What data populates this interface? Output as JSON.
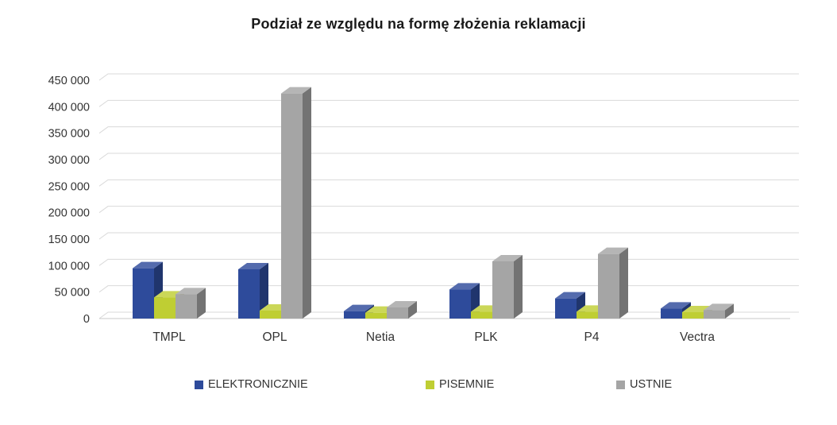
{
  "title": "Podział ze względu na formę złożenia reklamacji",
  "chart_data": {
    "type": "bar",
    "variant": "3d-clustered-column",
    "title": "Podział ze względu na formę złożenia reklamacji",
    "categories": [
      "TMPL",
      "OPL",
      "Netia",
      "PLK",
      "P4",
      "Vectra"
    ],
    "series": [
      {
        "name": "ELEKTRONICZNIE",
        "color": "#2E4B9B",
        "values": [
          95000,
          93000,
          14000,
          55000,
          38000,
          19000
        ]
      },
      {
        "name": "PISEMNIE",
        "color": "#BFCE33",
        "values": [
          40000,
          15000,
          11000,
          13000,
          13000,
          12000
        ]
      },
      {
        "name": "USTNIE",
        "color": "#A5A5A5",
        "values": [
          46000,
          425000,
          21000,
          108000,
          122000,
          16000
        ]
      }
    ],
    "ylim": [
      0,
      450000
    ],
    "ytick_step": 50000,
    "ytick_labels": [
      "0",
      "50 000",
      "100 000",
      "150 000",
      "200 000",
      "250 000",
      "300 000",
      "350 000",
      "400 000",
      "450 000"
    ],
    "grid": true,
    "gridline_color": "#D9D9D9",
    "axis_text_color": "#333333",
    "legend_position": "bottom",
    "legend_labels": [
      "ELEKTRONICZNIE",
      "PISEMNIE",
      "USTNIE"
    ]
  }
}
